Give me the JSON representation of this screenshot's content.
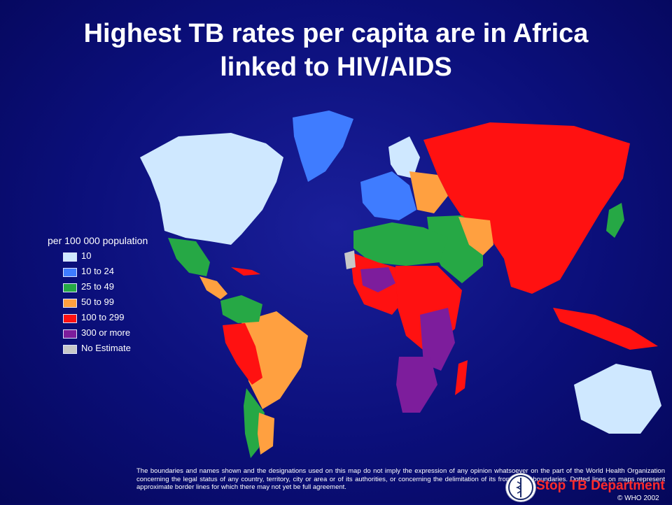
{
  "title": {
    "line1": "Highest TB rates per capita are in Africa",
    "line2": "linked to HIV/AIDS"
  },
  "legend": {
    "heading": "per 100 000 population",
    "items": [
      {
        "label": "10",
        "color": "#cfe8ff"
      },
      {
        "label": "10 to 24",
        "color": "#3f7cff"
      },
      {
        "label": "25 to 49",
        "color": "#26a845"
      },
      {
        "label": "50 to 99",
        "color": "#ffa040"
      },
      {
        "label": "100 to 299",
        "color": "#ff1111"
      },
      {
        "label": "300 or more",
        "color": "#7d1d9c"
      },
      {
        "label": "No Estimate",
        "color": "#c8c8c8"
      }
    ]
  },
  "disclaimer": "The boundaries and names shown and the designations used on this map do not imply the expression of any opinion whatsoever on the part of the World Health Organization concerning the legal status of any country, territory, city or area or of its authorities, or concerning the delimitation of its frontiers or boundaries. Dotted lines on maps represent approximate border lines for which there may not yet be full agreement.",
  "branding": {
    "stop_tb": "Stop TB Department",
    "copyright": "© WHO 2002"
  },
  "colors": {
    "background": "#0b0f7a",
    "accent": "#ff2b2b"
  }
}
